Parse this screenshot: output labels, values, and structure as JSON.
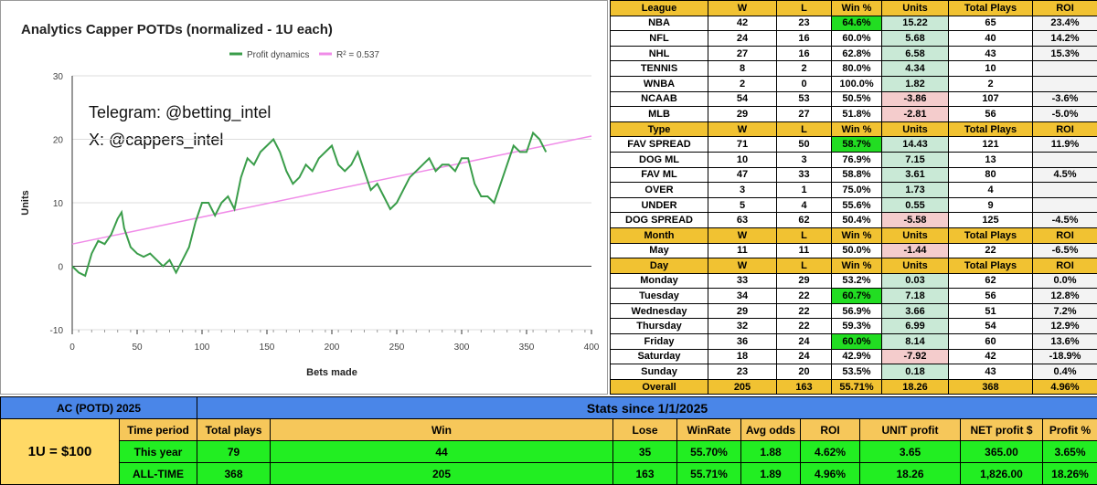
{
  "chart_data": {
    "type": "line",
    "title": "Analytics Capper POTDs (normalized - 1U each)",
    "xlabel": "Bets made",
    "ylabel": "Units",
    "annotations": [
      "Telegram: @betting_intel",
      "X: @cappers_intel"
    ],
    "xlim": [
      0,
      400
    ],
    "xticks": [
      0,
      50,
      100,
      150,
      200,
      250,
      300,
      350,
      400
    ],
    "ylim": [
      -10,
      30
    ],
    "yticks": [
      -10,
      0,
      10,
      20,
      30
    ],
    "grid": true,
    "series": [
      {
        "name": "Profit dynamics",
        "color": "#3a9d4a",
        "x": [
          0,
          5,
          10,
          15,
          20,
          25,
          30,
          35,
          38,
          40,
          45,
          50,
          55,
          60,
          65,
          70,
          75,
          80,
          85,
          90,
          95,
          100,
          105,
          110,
          115,
          120,
          125,
          130,
          135,
          140,
          145,
          150,
          155,
          160,
          165,
          170,
          175,
          180,
          185,
          190,
          195,
          200,
          205,
          210,
          215,
          220,
          225,
          230,
          235,
          240,
          245,
          250,
          255,
          260,
          265,
          270,
          275,
          280,
          285,
          290,
          295,
          300,
          305,
          310,
          315,
          320,
          325,
          330,
          335,
          340,
          345,
          350,
          355,
          360,
          365
        ],
        "values": [
          0,
          -1,
          -1.5,
          2,
          4,
          3.5,
          5,
          7.5,
          8.5,
          6,
          3,
          2,
          1.5,
          2,
          1,
          0,
          1,
          -1,
          1,
          3,
          7,
          10,
          10,
          8,
          10,
          11,
          9,
          14,
          17,
          16,
          18,
          19,
          20,
          18,
          15,
          13,
          14,
          16,
          15,
          17,
          18,
          19,
          16,
          15,
          16,
          18,
          15,
          12,
          13,
          11,
          9,
          10,
          12,
          14,
          15,
          16,
          17,
          15,
          16,
          16,
          15,
          17,
          17,
          13,
          11,
          11,
          10,
          13,
          16,
          19,
          18,
          18,
          21,
          20,
          18
        ]
      },
      {
        "name": "R² = 0.537",
        "color": "#f08ce8",
        "x": [
          0,
          400
        ],
        "values": [
          3.5,
          20.5
        ]
      }
    ]
  },
  "stats_table": {
    "win_highlight_color": "#22dd22",
    "sections": [
      {
        "header": [
          "League",
          "W",
          "L",
          "Win %",
          "Units",
          "Total Plays",
          "ROI"
        ],
        "highlight_rows": [
          0
        ],
        "rows": [
          [
            "NBA",
            "42",
            "23",
            "64.6%",
            "15.22",
            "65",
            "23.4%"
          ],
          [
            "NFL",
            "24",
            "16",
            "60.0%",
            "5.68",
            "40",
            "14.2%"
          ],
          [
            "NHL",
            "27",
            "16",
            "62.8%",
            "6.58",
            "43",
            "15.3%"
          ],
          [
            "TENNIS",
            "8",
            "2",
            "80.0%",
            "4.34",
            "10",
            null
          ],
          [
            "WNBA",
            "2",
            "0",
            "100.0%",
            "1.82",
            "2",
            null
          ],
          [
            "NCAAB",
            "54",
            "53",
            "50.5%",
            "-3.86",
            "107",
            "-3.6%"
          ],
          [
            "MLB",
            "29",
            "27",
            "51.8%",
            "-2.81",
            "56",
            "-5.0%"
          ]
        ]
      },
      {
        "header": [
          "Type",
          "W",
          "L",
          "Win %",
          "Units",
          "Total Plays",
          "ROI"
        ],
        "highlight_rows": [
          0
        ],
        "rows": [
          [
            "FAV SPREAD",
            "71",
            "50",
            "58.7%",
            "14.43",
            "121",
            "11.9%"
          ],
          [
            "DOG ML",
            "10",
            "3",
            "76.9%",
            "7.15",
            "13",
            null
          ],
          [
            "FAV ML",
            "47",
            "33",
            "58.8%",
            "3.61",
            "80",
            "4.5%"
          ],
          [
            "OVER",
            "3",
            "1",
            "75.0%",
            "1.73",
            "4",
            null
          ],
          [
            "UNDER",
            "5",
            "4",
            "55.6%",
            "0.55",
            "9",
            null
          ],
          [
            "DOG SPREAD",
            "63",
            "62",
            "50.4%",
            "-5.58",
            "125",
            "-4.5%"
          ]
        ]
      },
      {
        "header": [
          "Month",
          "W",
          "L",
          "Win %",
          "Units",
          "Total Plays",
          "ROI"
        ],
        "highlight_rows": [],
        "rows": [
          [
            "May",
            "11",
            "11",
            "50.0%",
            "-1.44",
            "22",
            "-6.5%"
          ]
        ]
      },
      {
        "header": [
          "Day",
          "W",
          "L",
          "Win %",
          "Units",
          "Total Plays",
          "ROI"
        ],
        "highlight_rows": [
          1,
          4
        ],
        "rows": [
          [
            "Monday",
            "33",
            "29",
            "53.2%",
            "0.03",
            "62",
            "0.0%"
          ],
          [
            "Tuesday",
            "34",
            "22",
            "60.7%",
            "7.18",
            "56",
            "12.8%"
          ],
          [
            "Wednesday",
            "29",
            "22",
            "56.9%",
            "3.66",
            "51",
            "7.2%"
          ],
          [
            "Thursday",
            "32",
            "22",
            "59.3%",
            "6.99",
            "54",
            "12.9%"
          ],
          [
            "Friday",
            "36",
            "24",
            "60.0%",
            "8.14",
            "60",
            "13.6%"
          ],
          [
            "Saturday",
            "18",
            "24",
            "42.9%",
            "-7.92",
            "42",
            "-18.9%"
          ],
          [
            "Sunday",
            "23",
            "20",
            "53.5%",
            "0.18",
            "43",
            "0.4%"
          ]
        ]
      }
    ],
    "overall": [
      "Overall",
      "205",
      "163",
      "55.71%",
      "18.26",
      "368",
      "4.96%"
    ]
  },
  "summary": {
    "title": "AC (POTD) 2025",
    "subtitle": "Stats since 1/1/2025",
    "unit": "1U = $100",
    "header": [
      "Time period",
      "Total plays",
      "Win",
      "Lose",
      "WinRate",
      "Avg odds",
      "ROI",
      "UNIT profit",
      "NET profit $",
      "Profit %"
    ],
    "rows": [
      [
        "This year",
        "79",
        "44",
        "35",
        "55.70%",
        "1.88",
        "4.62%",
        "3.65",
        "365.00",
        "3.65%"
      ],
      [
        "ALL-TIME",
        "368",
        "205",
        "163",
        "55.71%",
        "1.89",
        "4.96%",
        "18.26",
        "1,826.00",
        "18.26%"
      ]
    ]
  }
}
